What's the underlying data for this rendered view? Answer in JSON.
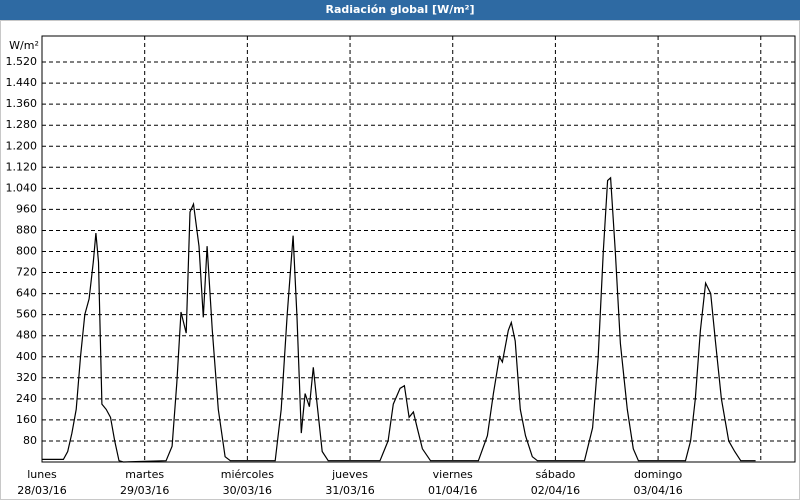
{
  "chart_data": {
    "type": "line",
    "title": "Radiación global [W/m²]",
    "y_label": "W/m²",
    "x": [
      0,
      5,
      6,
      7,
      8,
      9,
      10,
      11,
      12,
      12.6,
      13.2,
      14,
      15,
      16,
      17,
      18,
      19,
      29,
      30.4,
      31.5,
      32.5,
      33.7,
      34.6,
      35.4,
      36.7,
      37.7,
      38.6,
      39.8,
      41.2,
      42.8,
      44,
      54.5,
      55.9,
      57.3,
      58.7,
      59.6,
      60.6,
      61.5,
      62.5,
      63.4,
      64.3,
      65.5,
      66.9,
      79,
      80.9,
      82.1,
      83.7,
      84.7,
      85.8,
      86.8,
      87.7,
      88.9,
      90.8,
      102,
      104.1,
      105.5,
      106.9,
      107.6,
      109,
      109.7,
      110.6,
      111.8,
      113,
      114.6,
      115.8,
      126.8,
      128.7,
      130,
      131.2,
      132.2,
      132.9,
      134,
      135.2,
      136.8,
      138.2,
      139.4,
      150.4,
      151.6,
      152.7,
      153.9,
      155.1,
      156.3,
      157.4,
      158.8,
      160.5,
      161.9,
      163.3,
      166.8
    ],
    "series": [
      {
        "name": "Radiación global",
        "color": "#000000",
        "values": [
          10,
          10,
          40,
          110,
          200,
          400,
          560,
          620,
          760,
          870,
          760,
          220,
          200,
          170,
          80,
          5,
          0,
          5,
          60,
          300,
          570,
          490,
          950,
          980,
          820,
          550,
          820,
          500,
          200,
          20,
          5,
          5,
          200,
          560,
          860,
          550,
          110,
          260,
          210,
          360,
          220,
          40,
          5,
          5,
          80,
          220,
          280,
          290,
          170,
          190,
          130,
          50,
          5,
          5,
          100,
          260,
          400,
          380,
          500,
          530,
          460,
          200,
          100,
          20,
          5,
          5,
          130,
          400,
          800,
          1070,
          1080,
          800,
          450,
          200,
          50,
          5,
          5,
          80,
          240,
          500,
          680,
          640,
          460,
          240,
          80,
          40,
          5,
          5
        ]
      }
    ],
    "xlim": [
      0,
      176
    ],
    "xticks": [
      {
        "value": 0,
        "label": [
          "lunes",
          "28/03/16"
        ]
      },
      {
        "value": 24,
        "label": [
          "martes",
          "29/03/16"
        ]
      },
      {
        "value": 48,
        "label": [
          "miércoles",
          "30/03/16"
        ]
      },
      {
        "value": 72,
        "label": [
          "jueves",
          "31/03/16"
        ]
      },
      {
        "value": 96,
        "label": [
          "viernes",
          "01/04/16"
        ]
      },
      {
        "value": 120,
        "label": [
          "sábado",
          "02/04/16"
        ]
      },
      {
        "value": 144,
        "label": [
          "domingo",
          "03/04/16"
        ]
      },
      {
        "value": 168,
        "label": null
      }
    ],
    "ylim": [
      0,
      1600
    ],
    "yticks": [
      80,
      160,
      240,
      320,
      400,
      480,
      560,
      640,
      720,
      800,
      880,
      960,
      {
        "value": 1040,
        "label": "1.040"
      },
      {
        "value": 1120,
        "label": "1.120"
      },
      {
        "value": 1200,
        "label": "1.200"
      },
      {
        "value": 1280,
        "label": "1.280"
      },
      {
        "value": 1360,
        "label": "1.360"
      },
      {
        "value": 1440,
        "label": "1.440"
      },
      {
        "value": 1520,
        "label": "1.520"
      }
    ],
    "grid": true
  }
}
